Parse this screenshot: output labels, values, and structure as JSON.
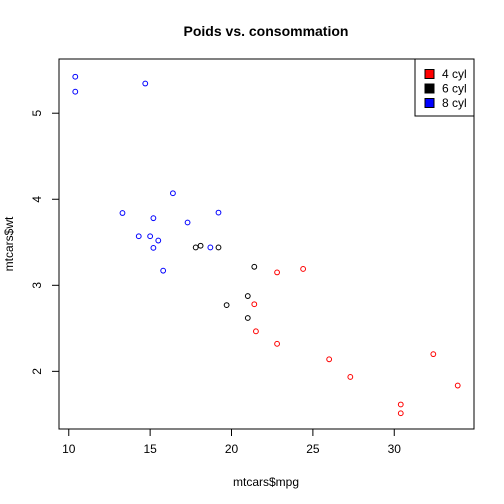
{
  "chart_data": {
    "type": "scatter",
    "title": "Poids vs. consommation",
    "xlabel": "mtcars$mpg",
    "ylabel": "mtcars$wt",
    "xlim": [
      9.4,
      34.9
    ],
    "ylim": [
      1.33,
      5.63
    ],
    "xticks": [
      10,
      15,
      20,
      25,
      30
    ],
    "yticks": [
      2,
      3,
      4,
      5
    ],
    "grid": false,
    "legend_position": "top-right",
    "series": [
      {
        "name": "4 cyl",
        "color": "#ff0000",
        "x": [
          22.8,
          24.4,
          22.8,
          32.4,
          30.4,
          33.9,
          21.5,
          27.3,
          26.0,
          30.4,
          21.4
        ],
        "y": [
          2.32,
          3.19,
          3.15,
          2.2,
          1.615,
          1.835,
          2.465,
          1.935,
          2.14,
          1.513,
          2.78
        ]
      },
      {
        "name": "6 cyl",
        "color": "#000000",
        "x": [
          21.0,
          21.0,
          21.4,
          18.1,
          19.2,
          17.8,
          19.7
        ],
        "y": [
          2.62,
          2.875,
          3.215,
          3.46,
          3.44,
          3.44,
          2.77
        ]
      },
      {
        "name": "8 cyl",
        "color": "#0000ff",
        "x": [
          18.7,
          14.3,
          16.4,
          17.3,
          15.2,
          10.4,
          10.4,
          14.7,
          15.5,
          15.2,
          13.3,
          19.2,
          15.8,
          15.0
        ],
        "y": [
          3.44,
          3.57,
          4.07,
          3.73,
          3.78,
          5.25,
          5.424,
          5.345,
          3.52,
          3.435,
          3.84,
          3.845,
          3.17,
          3.57
        ]
      }
    ]
  }
}
